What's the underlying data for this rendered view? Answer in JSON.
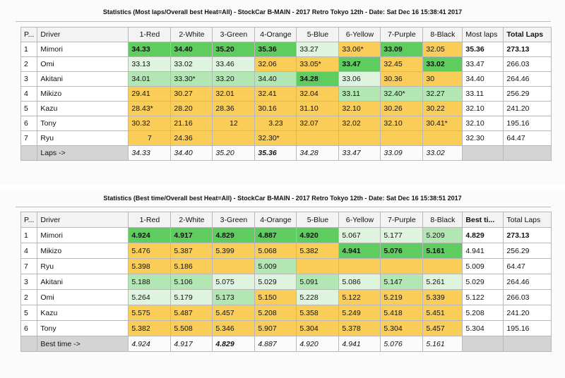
{
  "colors": {
    "best": "#5fcc5f",
    "second": "#b2e6b2",
    "third": "#dff4df",
    "low": "#f9cd57",
    "footer": "#d4d4d4"
  },
  "table1": {
    "title": "Statistics (Most laps/Overall best Heat=All) - StockCar B-MAIN - 2017 Retro Tokyo 12th - Date: Sat Dec 16 15:38:41 2017",
    "headers": [
      "P...",
      "Driver",
      "1-Red",
      "2-White",
      "3-Green",
      "4-Orange",
      "5-Blue",
      "6-Yellow",
      "7-Purple",
      "8-Black",
      "Most laps",
      "Total Laps"
    ],
    "rows": [
      {
        "pos": "1",
        "driver": "Mimori",
        "cells": [
          "34.33",
          "34.40",
          "35.20",
          "35.36",
          "33.27",
          "33.06*",
          "33.09",
          "32.05"
        ],
        "best": "35.36",
        "total": "273.13"
      },
      {
        "pos": "2",
        "driver": "Omi",
        "cells": [
          "33.13",
          "33.02",
          "33.46",
          "32.06",
          "33.05*",
          "33.47",
          "32.45",
          "33.02"
        ],
        "best": "33.47",
        "total": "266.03"
      },
      {
        "pos": "3",
        "driver": "Akitani",
        "cells": [
          "34.01",
          "33.30*",
          "33.20",
          "34.40",
          "34.28",
          "33.06",
          "30.36",
          "30"
        ],
        "best": "34.40",
        "total": "264.46"
      },
      {
        "pos": "4",
        "driver": "Mikizo",
        "cells": [
          "29.41",
          "30.27",
          "32.01",
          "32.41",
          "32.04",
          "33.11",
          "32.40*",
          "32.27"
        ],
        "best": "33.11",
        "total": "256.29"
      },
      {
        "pos": "5",
        "driver": "Kazu",
        "cells": [
          "28.43*",
          "28.20",
          "28.36",
          "30.16",
          "31.10",
          "32.10",
          "30.26",
          "30.22"
        ],
        "best": "32.10",
        "total": "241.20"
      },
      {
        "pos": "6",
        "driver": "Tony",
        "cells": [
          "30.32",
          "21.16",
          "12",
          "3.23",
          "32.07",
          "32.02",
          "32.10",
          "30.41*"
        ],
        "best": "32.10",
        "total": "195.16"
      },
      {
        "pos": "7",
        "driver": "Ryu",
        "cells": [
          "7",
          "24.36",
          "",
          "32.30*",
          "",
          "",
          "",
          ""
        ],
        "best": "32.30",
        "total": "64.47"
      }
    ],
    "footer": {
      "label": "Laps ->",
      "cells": [
        "34.33",
        "34.40",
        "35.20",
        "35.36",
        "34.28",
        "33.47",
        "33.09",
        "33.02"
      ]
    }
  },
  "table2": {
    "title": "Statistics (Best time/Overall best Heat=All) - StockCar B-MAIN - 2017 Retro Tokyo 12th - Date: Sat Dec 16 15:38:51 2017",
    "headers": [
      "P...",
      "Driver",
      "1-Red",
      "2-White",
      "3-Green",
      "4-Orange",
      "5-Blue",
      "6-Yellow",
      "7-Purple",
      "8-Black",
      "Best ti...",
      "Total Laps"
    ],
    "rows": [
      {
        "pos": "1",
        "driver": "Mimori",
        "cells": [
          "4.924",
          "4.917",
          "4.829",
          "4.887",
          "4.920",
          "5.067",
          "5.177",
          "5.209"
        ],
        "best": "4.829",
        "total": "273.13"
      },
      {
        "pos": "4",
        "driver": "Mikizo",
        "cells": [
          "5.476",
          "5.387",
          "5.399",
          "5.068",
          "5.382",
          "4.941",
          "5.076",
          "5.161"
        ],
        "best": "4.941",
        "total": "256.29"
      },
      {
        "pos": "7",
        "driver": "Ryu",
        "cells": [
          "5.398",
          "5.186",
          "",
          "5.009",
          "",
          "",
          "",
          ""
        ],
        "best": "5.009",
        "total": "64.47"
      },
      {
        "pos": "3",
        "driver": "Akitani",
        "cells": [
          "5.188",
          "5.106",
          "5.075",
          "5.029",
          "5.091",
          "5.086",
          "5.147",
          "5.261"
        ],
        "best": "5.029",
        "total": "264.46"
      },
      {
        "pos": "2",
        "driver": "Omi",
        "cells": [
          "5.264",
          "5.179",
          "5.173",
          "5.150",
          "5.228",
          "5.122",
          "5.219",
          "5.339"
        ],
        "best": "5.122",
        "total": "266.03"
      },
      {
        "pos": "5",
        "driver": "Kazu",
        "cells": [
          "5.575",
          "5.487",
          "5.457",
          "5.208",
          "5.358",
          "5.249",
          "5.418",
          "5.451"
        ],
        "best": "5.208",
        "total": "241.20"
      },
      {
        "pos": "6",
        "driver": "Tony",
        "cells": [
          "5.382",
          "5.508",
          "5.346",
          "5.907",
          "5.304",
          "5.378",
          "5.304",
          "5.457"
        ],
        "best": "5.304",
        "total": "195.16"
      }
    ],
    "footer": {
      "label": "Best time ->",
      "cells": [
        "4.924",
        "4.917",
        "4.829",
        "4.887",
        "4.920",
        "4.941",
        "5.076",
        "5.161"
      ]
    }
  }
}
